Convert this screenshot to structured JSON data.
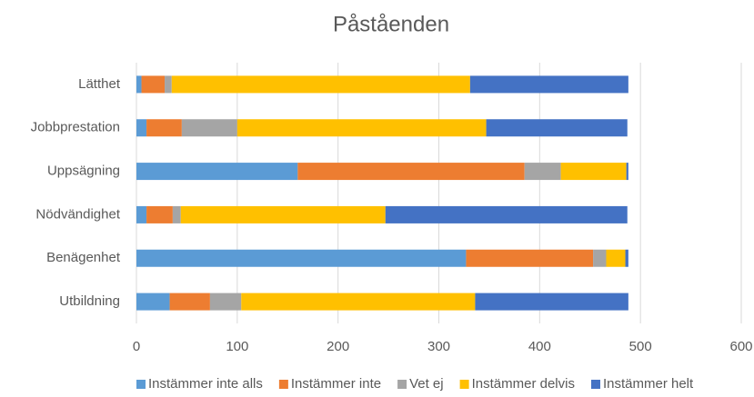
{
  "chart_data": {
    "type": "stacked_barh",
    "title": "Påståenden",
    "categories": [
      "Lätthet",
      "Jobbprestation",
      "Uppsägning",
      "Nödvändighet",
      "Benägenhet",
      "Utbildning"
    ],
    "series": [
      {
        "name": "Instämmer inte alls",
        "color": "#5b9bd5",
        "values": [
          5,
          10,
          160,
          10,
          327,
          33
        ]
      },
      {
        "name": "Instämmer inte",
        "color": "#ed7d31",
        "values": [
          23,
          35,
          225,
          26,
          126,
          40
        ]
      },
      {
        "name": "Vet ej",
        "color": "#a5a5a5",
        "values": [
          7,
          55,
          36,
          8,
          13,
          31
        ]
      },
      {
        "name": "Instämmer delvis",
        "color": "#ffc000",
        "values": [
          296,
          247,
          65,
          203,
          19,
          232
        ]
      },
      {
        "name": "Instämmer helt",
        "color": "#4472c4",
        "values": [
          157,
          140,
          2,
          240,
          3,
          152
        ]
      }
    ],
    "xlim": [
      0,
      600
    ],
    "xticks": [
      0,
      100,
      200,
      300,
      400,
      500,
      600
    ],
    "grid": true,
    "legend": "bottom"
  }
}
